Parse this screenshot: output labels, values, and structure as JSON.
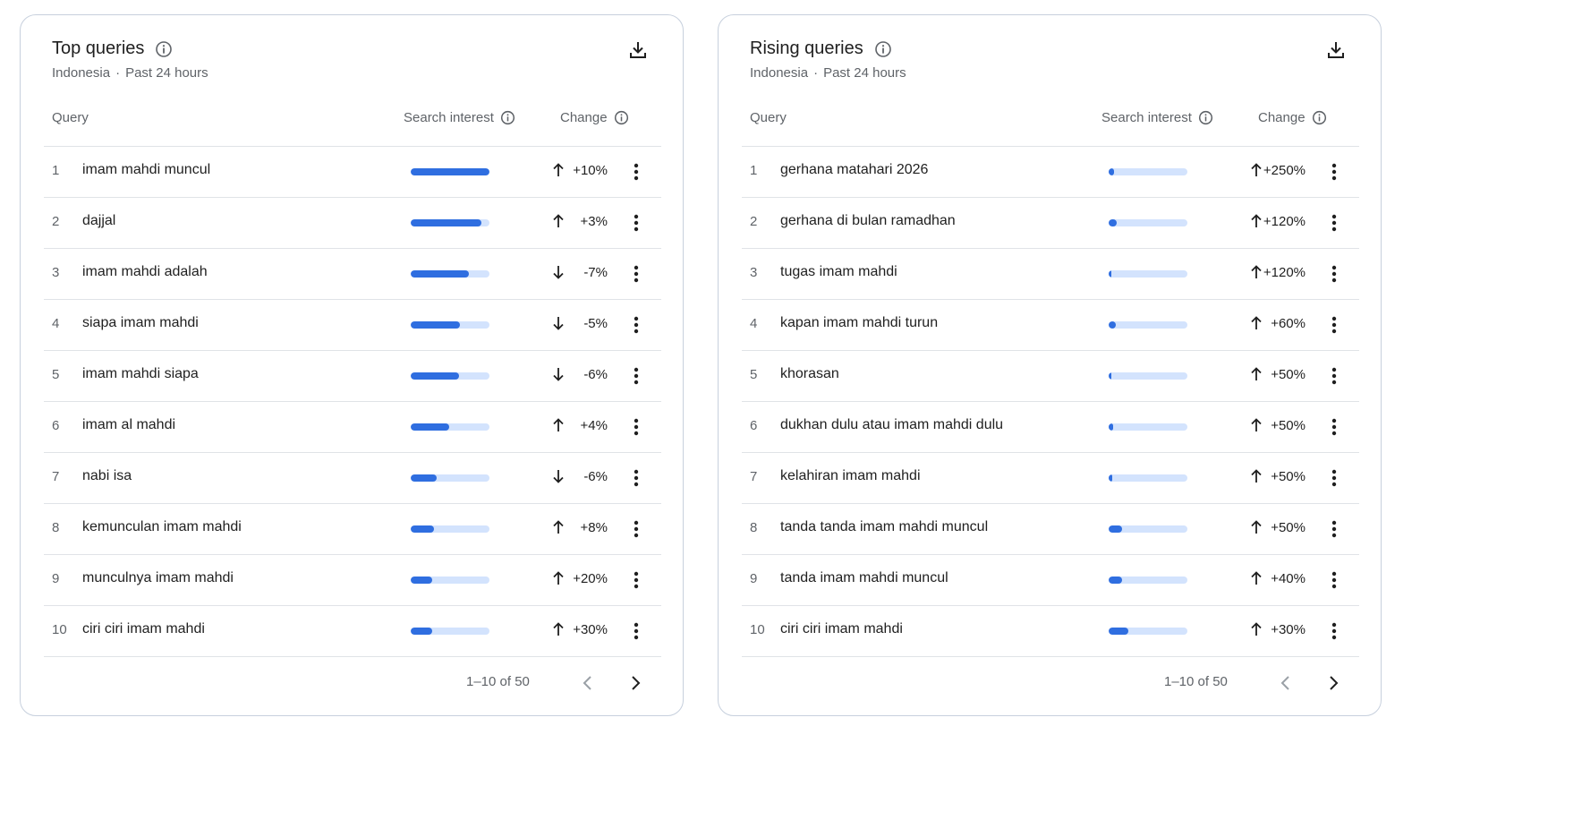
{
  "panels": [
    {
      "title": "Top queries",
      "location": "Indonesia",
      "separator": "·",
      "period": "Past 24 hours",
      "columns": {
        "query": "Query",
        "interest": "Search interest",
        "change": "Change"
      },
      "rows": [
        {
          "rank": "1",
          "query": "imam mahdi muncul",
          "interest": 1.0,
          "direction": "up",
          "change": "+10%"
        },
        {
          "rank": "2",
          "query": "dajjal",
          "interest": 0.9,
          "direction": "up",
          "change": "+3%"
        },
        {
          "rank": "3",
          "query": "imam mahdi adalah",
          "interest": 0.74,
          "direction": "down",
          "change": "-7%"
        },
        {
          "rank": "4",
          "query": "siapa imam mahdi",
          "interest": 0.62,
          "direction": "down",
          "change": "-5%"
        },
        {
          "rank": "5",
          "query": "imam mahdi siapa",
          "interest": 0.61,
          "direction": "down",
          "change": "-6%"
        },
        {
          "rank": "6",
          "query": "imam al mahdi",
          "interest": 0.49,
          "direction": "up",
          "change": "+4%"
        },
        {
          "rank": "7",
          "query": "nabi isa",
          "interest": 0.33,
          "direction": "down",
          "change": "-6%"
        },
        {
          "rank": "8",
          "query": "kemunculan imam mahdi",
          "interest": 0.29,
          "direction": "up",
          "change": "+8%"
        },
        {
          "rank": "9",
          "query": "munculnya imam mahdi",
          "interest": 0.27,
          "direction": "up",
          "change": "+20%"
        },
        {
          "rank": "10",
          "query": "ciri ciri imam mahdi",
          "interest": 0.27,
          "direction": "up",
          "change": "+30%"
        }
      ],
      "pagination": "1–10 of 50"
    },
    {
      "title": "Rising queries",
      "location": "Indonesia",
      "separator": "·",
      "period": "Past 24 hours",
      "columns": {
        "query": "Query",
        "interest": "Search interest",
        "change": "Change"
      },
      "rows": [
        {
          "rank": "1",
          "query": "gerhana matahari 2026",
          "interest": 0.07,
          "direction": "up",
          "change": "+250%"
        },
        {
          "rank": "2",
          "query": "gerhana di bulan ramadhan",
          "interest": 0.1,
          "direction": "up",
          "change": "+120%"
        },
        {
          "rank": "3",
          "query": "tugas imam mahdi",
          "interest": 0.03,
          "direction": "up",
          "change": "+120%"
        },
        {
          "rank": "4",
          "query": "kapan imam mahdi turun",
          "interest": 0.09,
          "direction": "up",
          "change": "+60%"
        },
        {
          "rank": "5",
          "query": "khorasan",
          "interest": 0.03,
          "direction": "up",
          "change": "+50%"
        },
        {
          "rank": "6",
          "query": "dukhan dulu atau imam mahdi dulu",
          "interest": 0.06,
          "direction": "up",
          "change": "+50%"
        },
        {
          "rank": "7",
          "query": "kelahiran imam mahdi",
          "interest": 0.04,
          "direction": "up",
          "change": "+50%"
        },
        {
          "rank": "8",
          "query": "tanda tanda imam mahdi muncul",
          "interest": 0.17,
          "direction": "up",
          "change": "+50%"
        },
        {
          "rank": "9",
          "query": "tanda imam mahdi muncul",
          "interest": 0.17,
          "direction": "up",
          "change": "+40%"
        },
        {
          "rank": "10",
          "query": "ciri ciri imam mahdi",
          "interest": 0.25,
          "direction": "up",
          "change": "+30%"
        }
      ],
      "pagination": "1–10 of 50"
    }
  ],
  "icons": {
    "info": "info-icon",
    "download": "download-icon",
    "up": "arrow-up-icon",
    "down": "arrow-down-icon",
    "more": "more-vert-icon",
    "prev": "chevron-left-icon",
    "next": "chevron-right-icon"
  },
  "colors": {
    "bar_fill": "#2f6ee0",
    "bar_track": "#d3e3fd",
    "border": "#c7d0dd",
    "muted_text": "#5f6368",
    "disabled_icon": "#9aa0a6"
  }
}
